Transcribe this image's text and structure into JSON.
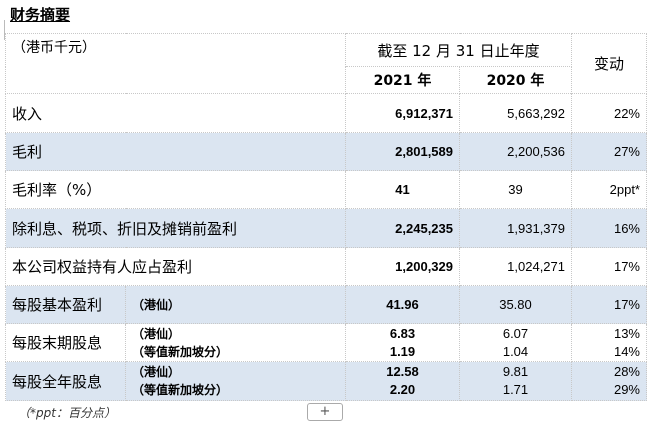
{
  "title": "财务摘要",
  "header": {
    "unit": "（港币千元）",
    "period": "截至 12 月 31 日止年度",
    "change": "变动",
    "y2021": "2021 年",
    "y2020": "2020 年"
  },
  "rows": [
    {
      "label": "收入",
      "v2021": "6,912,371",
      "v2020": "5,663,292",
      "change": "22%"
    },
    {
      "label": "毛利",
      "v2021": "2,801,589",
      "v2020": "2,200,536",
      "change": "27%"
    },
    {
      "label": "毛利率（%）",
      "v2021": "41",
      "v2020": "39",
      "change": "2ppt*"
    },
    {
      "label": "除利息、税项、折旧及摊销前盈利",
      "v2021": "2,245,235",
      "v2020": "1,931,379",
      "change": "16%"
    },
    {
      "label": "本公司权益持有人应占盈利",
      "v2021": "1,200,329",
      "v2020": "1,024,271",
      "change": "17%"
    }
  ],
  "eps": {
    "label": "每股基本盈利",
    "unit": "（港仙）",
    "v2021": "41.96",
    "v2020": "35.80",
    "change": "17%"
  },
  "final_div": {
    "label": "每股末期股息",
    "unit1": "（港仙）",
    "unit2": "（等值新加坡分）",
    "v2021a": "6.83",
    "v2021b": "1.19",
    "v2020a": "6.07",
    "v2020b": "1.04",
    "changea": "13%",
    "changeb": "14%"
  },
  "full_div": {
    "label": "每股全年股息",
    "unit1": "（港仙）",
    "unit2": "（等值新加坡分）",
    "v2021a": "12.58",
    "v2021b": "2.20",
    "v2020a": "9.81",
    "v2020b": "1.71",
    "changea": "28%",
    "changeb": "29%"
  },
  "footnote": "（*ppt：百分点）",
  "add_button": "+"
}
